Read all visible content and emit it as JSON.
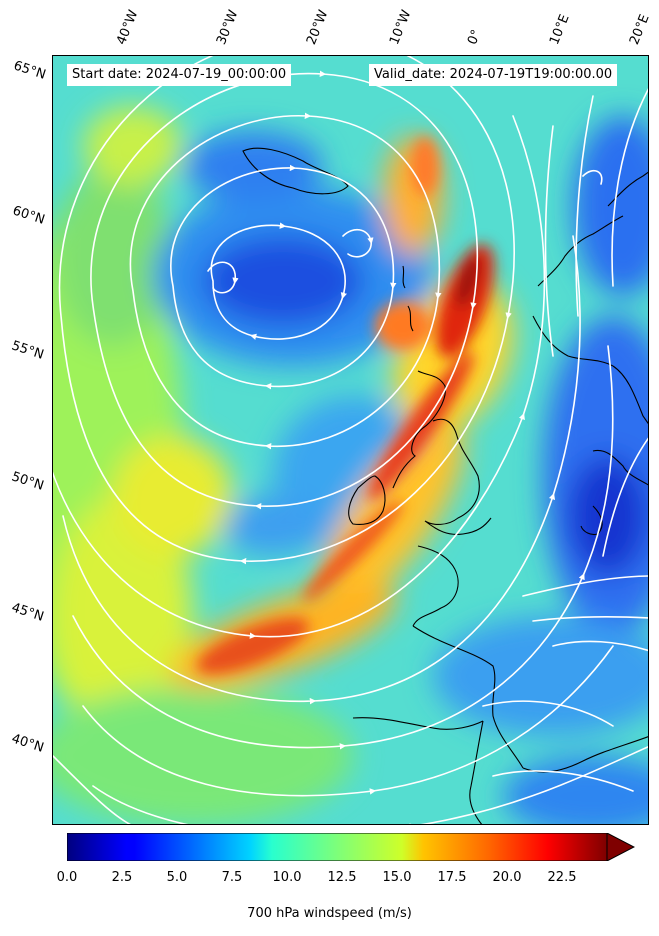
{
  "header": {
    "start_date": "Start date: 2024-07-19_00:00:00",
    "valid_date": "Valid_date: 2024-07-19T19:00:00.00"
  },
  "axes": {
    "lon_labels": [
      "40°W",
      "30°W",
      "20°W",
      "10°W",
      "0°",
      "10°E",
      "20°E"
    ],
    "lat_labels": [
      "65°N",
      "60°N",
      "55°N",
      "50°N",
      "45°N",
      "40°N"
    ]
  },
  "colorbar": {
    "ticks": [
      "0.0",
      "2.5",
      "5.0",
      "7.5",
      "10.0",
      "12.5",
      "15.0",
      "17.5",
      "20.0",
      "22.5"
    ],
    "title": "700 hPa windspeed (m/s)",
    "min": 0,
    "max": 25,
    "extend": "max",
    "colormap": "jet"
  },
  "map": {
    "field": "700 hPa windspeed",
    "units": "m/s",
    "streamline_color": "#ffffff",
    "coastline_color": "#000000"
  }
}
